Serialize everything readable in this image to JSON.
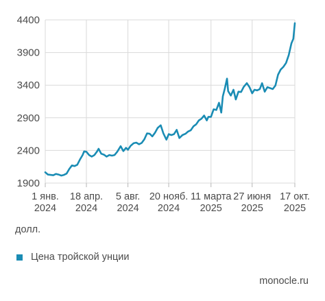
{
  "chart_data": {
    "type": "line",
    "title": "",
    "ylabel": "",
    "xlabel": "",
    "unit_label": "долл.",
    "ylim": [
      1900,
      4400
    ],
    "yticks": [
      "4400",
      "3900",
      "3400",
      "2900",
      "2400",
      "1900"
    ],
    "ytick_values": [
      4400,
      3900,
      3400,
      2900,
      2400,
      1900
    ],
    "xlim": [
      "2024-01-01",
      "2025-10-17"
    ],
    "xticks": [
      {
        "line1": "1 янв.",
        "line2": "2024",
        "date": "2024-01-01"
      },
      {
        "line1": "18 апр.",
        "line2": "2024",
        "date": "2024-04-18"
      },
      {
        "line1": "5 авг.",
        "line2": "2024",
        "date": "2024-08-05"
      },
      {
        "line1": "20 нояб.",
        "line2": "2024",
        "date": "2024-11-20"
      },
      {
        "line1": "11 марта",
        "line2": "2025",
        "date": "2025-03-11"
      },
      {
        "line1": "27 июня",
        "line2": "2025",
        "date": "2025-06-27"
      },
      {
        "line1": "17 окт.",
        "line2": "2025",
        "date": "2025-10-17"
      }
    ],
    "grid": true,
    "legend_position": "bottom-left",
    "series": [
      {
        "name": "Цена тройской унции",
        "color": "#1a8cb4",
        "points": [
          [
            "2024-01-01",
            2065
          ],
          [
            "2024-01-08",
            2030
          ],
          [
            "2024-01-15",
            2025
          ],
          [
            "2024-01-22",
            2020
          ],
          [
            "2024-01-29",
            2040
          ],
          [
            "2024-02-05",
            2030
          ],
          [
            "2024-02-12",
            2015
          ],
          [
            "2024-02-19",
            2025
          ],
          [
            "2024-02-26",
            2045
          ],
          [
            "2024-03-04",
            2115
          ],
          [
            "2024-03-11",
            2170
          ],
          [
            "2024-03-18",
            2160
          ],
          [
            "2024-03-25",
            2180
          ],
          [
            "2024-04-01",
            2260
          ],
          [
            "2024-04-08",
            2330
          ],
          [
            "2024-04-12",
            2385
          ],
          [
            "2024-04-18",
            2380
          ],
          [
            "2024-04-25",
            2330
          ],
          [
            "2024-05-02",
            2305
          ],
          [
            "2024-05-09",
            2330
          ],
          [
            "2024-05-16",
            2385
          ],
          [
            "2024-05-20",
            2425
          ],
          [
            "2024-05-27",
            2350
          ],
          [
            "2024-06-03",
            2335
          ],
          [
            "2024-06-10",
            2305
          ],
          [
            "2024-06-17",
            2330
          ],
          [
            "2024-06-24",
            2320
          ],
          [
            "2024-07-01",
            2330
          ],
          [
            "2024-07-08",
            2380
          ],
          [
            "2024-07-17",
            2465
          ],
          [
            "2024-07-24",
            2390
          ],
          [
            "2024-07-31",
            2440
          ],
          [
            "2024-08-05",
            2410
          ],
          [
            "2024-08-12",
            2470
          ],
          [
            "2024-08-20",
            2510
          ],
          [
            "2024-08-27",
            2520
          ],
          [
            "2024-09-03",
            2495
          ],
          [
            "2024-09-10",
            2515
          ],
          [
            "2024-09-17",
            2570
          ],
          [
            "2024-09-24",
            2660
          ],
          [
            "2024-10-01",
            2655
          ],
          [
            "2024-10-08",
            2615
          ],
          [
            "2024-10-15",
            2670
          ],
          [
            "2024-10-22",
            2745
          ],
          [
            "2024-10-30",
            2785
          ],
          [
            "2024-11-06",
            2660
          ],
          [
            "2024-11-14",
            2565
          ],
          [
            "2024-11-20",
            2650
          ],
          [
            "2024-11-27",
            2635
          ],
          [
            "2024-12-04",
            2650
          ],
          [
            "2024-12-11",
            2715
          ],
          [
            "2024-12-18",
            2590
          ],
          [
            "2024-12-26",
            2635
          ],
          [
            "2025-01-03",
            2655
          ],
          [
            "2025-01-10",
            2690
          ],
          [
            "2025-01-17",
            2710
          ],
          [
            "2025-01-24",
            2770
          ],
          [
            "2025-01-31",
            2800
          ],
          [
            "2025-02-07",
            2860
          ],
          [
            "2025-02-14",
            2885
          ],
          [
            "2025-02-21",
            2935
          ],
          [
            "2025-02-28",
            2860
          ],
          [
            "2025-03-04",
            2915
          ],
          [
            "2025-03-11",
            2915
          ],
          [
            "2025-03-18",
            3030
          ],
          [
            "2025-03-25",
            3020
          ],
          [
            "2025-04-01",
            3130
          ],
          [
            "2025-04-07",
            2980
          ],
          [
            "2025-04-11",
            3230
          ],
          [
            "2025-04-16",
            3340
          ],
          [
            "2025-04-22",
            3500
          ],
          [
            "2025-04-25",
            3310
          ],
          [
            "2025-05-02",
            3240
          ],
          [
            "2025-05-09",
            3330
          ],
          [
            "2025-05-15",
            3180
          ],
          [
            "2025-05-22",
            3300
          ],
          [
            "2025-05-29",
            3295
          ],
          [
            "2025-06-05",
            3375
          ],
          [
            "2025-06-13",
            3430
          ],
          [
            "2025-06-20",
            3370
          ],
          [
            "2025-06-27",
            3275
          ],
          [
            "2025-07-03",
            3330
          ],
          [
            "2025-07-10",
            3320
          ],
          [
            "2025-07-17",
            3340
          ],
          [
            "2025-07-23",
            3430
          ],
          [
            "2025-07-30",
            3300
          ],
          [
            "2025-08-06",
            3370
          ],
          [
            "2025-08-13",
            3355
          ],
          [
            "2025-08-20",
            3340
          ],
          [
            "2025-08-27",
            3395
          ],
          [
            "2025-09-03",
            3560
          ],
          [
            "2025-09-10",
            3640
          ],
          [
            "2025-09-17",
            3680
          ],
          [
            "2025-09-24",
            3740
          ],
          [
            "2025-10-01",
            3860
          ],
          [
            "2025-10-08",
            4040
          ],
          [
            "2025-10-13",
            4110
          ],
          [
            "2025-10-17",
            4350
          ]
        ]
      }
    ]
  },
  "legend": {
    "label": "Цена тройской унции",
    "swatch_color": "#1a8cb4"
  },
  "source": "monocle.ru",
  "colors": {
    "line": "#1a8cb4",
    "grid": "#d9d9d9",
    "text": "#4a4a4a"
  }
}
